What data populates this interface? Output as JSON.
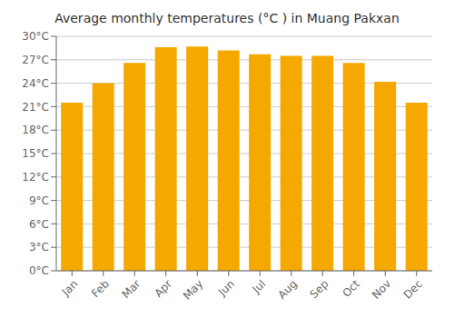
{
  "chart_data": {
    "type": "bar",
    "title": "Average monthly temperatures (°C ) in Muang Pakxan",
    "categories": [
      "Jan",
      "Feb",
      "Mar",
      "Apr",
      "May",
      "Jun",
      "Jul",
      "Aug",
      "Sep",
      "Oct",
      "Nov",
      "Dec"
    ],
    "values": [
      21.5,
      24.0,
      26.6,
      28.6,
      28.7,
      28.2,
      27.7,
      27.5,
      27.5,
      26.6,
      24.2,
      21.5
    ],
    "color": "#F5A800",
    "ylim": [
      0,
      30
    ],
    "yticks": [
      {
        "value": 0,
        "label": "0°C"
      },
      {
        "value": 3,
        "label": "3°C"
      },
      {
        "value": 6,
        "label": "6°C"
      },
      {
        "value": 9,
        "label": "9°C"
      },
      {
        "value": 12,
        "label": "12°C"
      },
      {
        "value": 15,
        "label": "15°C"
      },
      {
        "value": 18,
        "label": "18°C"
      },
      {
        "value": 21,
        "label": "21°C"
      },
      {
        "value": 24,
        "label": "24°C"
      },
      {
        "value": 27,
        "label": "27°C"
      },
      {
        "value": 30,
        "label": "30°C"
      }
    ],
    "grid": true
  }
}
